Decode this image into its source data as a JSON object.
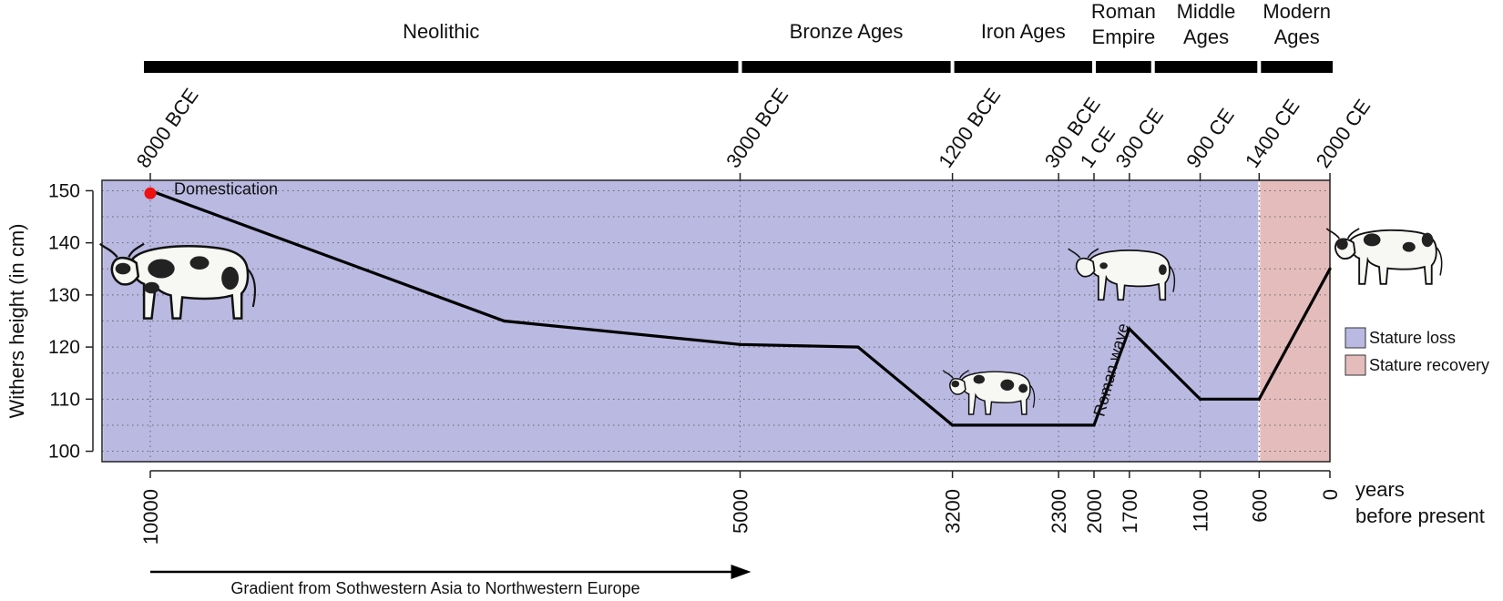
{
  "chart_data": {
    "type": "line",
    "ylabel": "Withers height (in cm)",
    "xlabel": "years before present",
    "x_reversed": true,
    "ylim": [
      98,
      152
    ],
    "yticks": [
      100,
      110,
      120,
      130,
      140,
      150
    ],
    "grid": true,
    "series": [
      {
        "x": [
          10000,
          7000,
          5000,
          4000,
          3200,
          2000,
          1700,
          1100,
          600,
          0
        ],
        "y": [
          150,
          125,
          120.5,
          120,
          105,
          105,
          123.5,
          110,
          110,
          135
        ]
      }
    ],
    "start_point": {
      "x": 10000,
      "y": 149.5,
      "label": "Domestication",
      "color": "#ee1111"
    },
    "bottom_ticks": [
      {
        "x": 10000,
        "label": "10000"
      },
      {
        "x": 5000,
        "label": "5000"
      },
      {
        "x": 3200,
        "label": "3200"
      },
      {
        "x": 2300,
        "label": "2300"
      },
      {
        "x": 2000,
        "label": "2000"
      },
      {
        "x": 1700,
        "label": "1700"
      },
      {
        "x": 1100,
        "label": "1100"
      },
      {
        "x": 600,
        "label": "600"
      },
      {
        "x": 0,
        "label": "0"
      }
    ],
    "top_ticks": [
      {
        "x": 10000,
        "label": "8000 BCE"
      },
      {
        "x": 5000,
        "label": "3000 BCE"
      },
      {
        "x": 3200,
        "label": "1200 BCE"
      },
      {
        "x": 2300,
        "label": "300 BCE"
      },
      {
        "x": 2000,
        "label": "1 CE"
      },
      {
        "x": 1700,
        "label": "300 CE"
      },
      {
        "x": 1100,
        "label": "900 CE"
      },
      {
        "x": 600,
        "label": "1400 CE"
      },
      {
        "x": 0,
        "label": "2000 CE"
      }
    ],
    "eras": [
      {
        "label": "Neolithic",
        "from": 10400,
        "to": 5000
      },
      {
        "label": "Bronze Ages",
        "from": 5000,
        "to": 3200
      },
      {
        "label": "Iron Ages",
        "from": 3200,
        "to": 2000
      },
      {
        "label": "Roman Empire",
        "from": 2000,
        "to": 1500
      },
      {
        "label": "Middle Ages",
        "from": 1500,
        "to": 600
      },
      {
        "label": "Modern Ages",
        "from": 600,
        "to": 0
      }
    ],
    "regions": [
      {
        "name": "Stature loss",
        "from": 10400,
        "to": 600,
        "color": "#b9b9e2"
      },
      {
        "name": "Stature recovery",
        "from": 600,
        "to": 0,
        "color": "#e5bcbc"
      }
    ],
    "annotations": {
      "roman_wave": "Roman wave",
      "gradient": "Gradient from Sothwestern Asia to Northwestern Europe",
      "years_bp_line1": "years",
      "years_bp_line2": "before present"
    },
    "legend": {
      "position": "right"
    }
  }
}
